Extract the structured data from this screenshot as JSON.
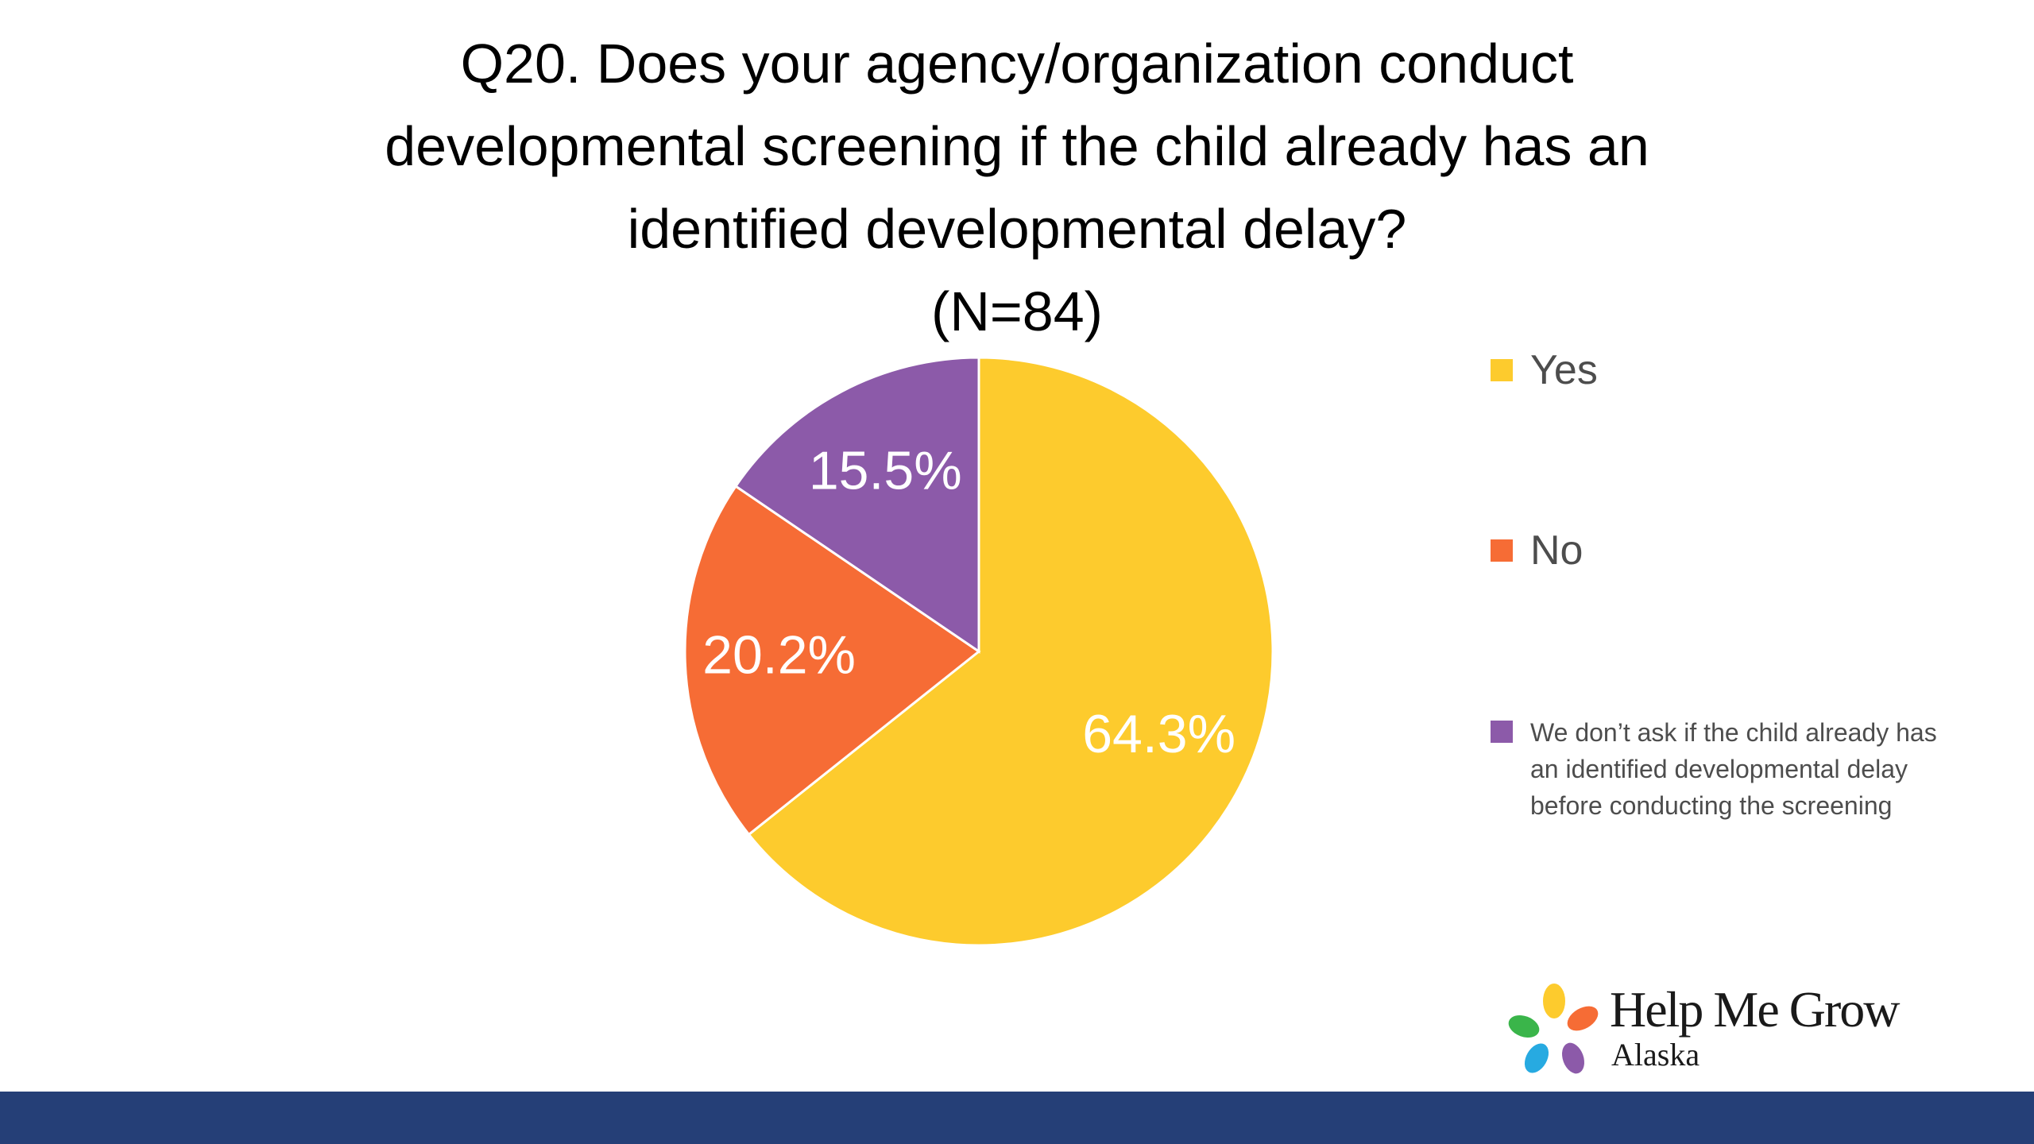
{
  "chart_data": {
    "type": "pie",
    "title_lines": [
      "Q20. Does your agency/organization conduct",
      "developmental screening if the child already has an",
      "identified developmental delay?",
      "(N=84)"
    ],
    "slices": [
      {
        "name": "Yes",
        "value": 64.3,
        "label": "64.3%",
        "color": "#fdcb2d"
      },
      {
        "name": "No",
        "value": 20.2,
        "label": "20.2%",
        "color": "#f66c35"
      },
      {
        "name": "We don’t ask if the child already has an identified developmental delay before conducting the screening",
        "value": 15.5,
        "label": "15.5%",
        "color": "#8c5aa9"
      }
    ],
    "legend_position": "right",
    "legend": [
      {
        "lines": [
          "Yes"
        ]
      },
      {
        "lines": [
          "No"
        ]
      },
      {
        "lines": [
          "We don’t ask if the child already has",
          "an identified developmental delay",
          "before conducting the screening"
        ]
      }
    ]
  },
  "logo": {
    "name": "Help Me Grow",
    "sub": "Alaska",
    "petal_colors": [
      "#fdcb2d",
      "#f66c35",
      "#8c5aa9",
      "#27aae1",
      "#3ab54a"
    ]
  },
  "footer": {
    "bar_color": "#253f77"
  }
}
